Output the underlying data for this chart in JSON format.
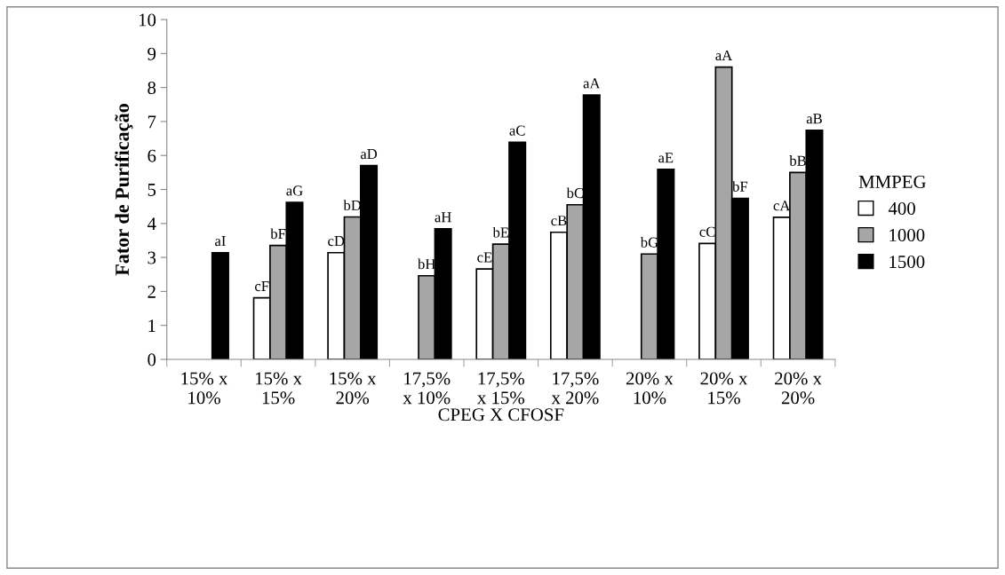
{
  "chart_data": {
    "type": "bar",
    "xlabel": "CPEG X CFOSF",
    "ylabel": "Fator de Purificação",
    "legend_title": "MMPEG",
    "legend": "right",
    "categories": [
      "15% x\n10%",
      "15% x\n15%",
      "15% x\n20%",
      "17,5%\nx 10%",
      "17,5%\nx 15%",
      "17,5%\nx 20%",
      "20% x\n10%",
      "20% x\n15%",
      "20% x\n20%"
    ],
    "ylim": [
      0,
      10
    ],
    "yticks": [
      0,
      1,
      2,
      3,
      4,
      5,
      6,
      7,
      8,
      9,
      10
    ],
    "grid": false,
    "series": [
      {
        "name": "400",
        "color": "#ffffff",
        "values": [
          null,
          1.81,
          3.14,
          null,
          2.66,
          3.74,
          null,
          3.41,
          4.18
        ],
        "value_labels": [
          null,
          "cF",
          "cD",
          null,
          "cE",
          "cB",
          null,
          "cC",
          "cA"
        ]
      },
      {
        "name": "1000",
        "color": "#a6a6a6",
        "values": [
          null,
          3.35,
          4.19,
          2.46,
          3.39,
          4.55,
          3.1,
          8.6,
          5.5
        ],
        "value_labels": [
          null,
          "bF",
          "bD",
          "bH",
          "bE",
          "bC",
          "bG",
          "aA",
          "bB"
        ]
      },
      {
        "name": "1500",
        "color": "#000000",
        "values": [
          3.14,
          4.62,
          5.7,
          3.84,
          6.39,
          7.78,
          5.59,
          4.74,
          6.74
        ],
        "value_labels": [
          "aI",
          "aG",
          "aD",
          "aH",
          "aC",
          "aA",
          "aE",
          "bF",
          "aB"
        ]
      }
    ]
  }
}
